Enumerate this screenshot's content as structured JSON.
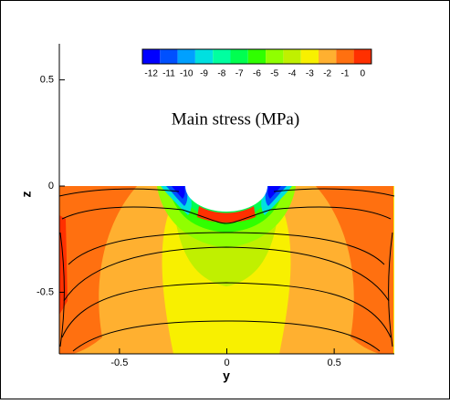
{
  "chart_data": {
    "type": "contour",
    "title": "Main stress (MPa)",
    "x_label": "y",
    "y_label": "z",
    "xlim": [
      -0.78,
      0.78
    ],
    "ylim": [
      -0.79,
      0.67
    ],
    "xticks": [
      -0.5,
      0,
      0.5
    ],
    "yticks": [
      0.5,
      0,
      -0.5
    ],
    "colorbar": {
      "levels": [
        -12,
        -11,
        -10,
        -9,
        -8,
        -7,
        -6,
        -5,
        -4,
        -3,
        -2,
        -1,
        0
      ],
      "colors": [
        "#0000ff",
        "#0050ff",
        "#00a0ff",
        "#00e0e0",
        "#00ffa0",
        "#00ff50",
        "#30ff00",
        "#90ff00",
        "#c0f000",
        "#f8f000",
        "#ffb030",
        "#ff7010",
        "#ff3000"
      ]
    }
  }
}
